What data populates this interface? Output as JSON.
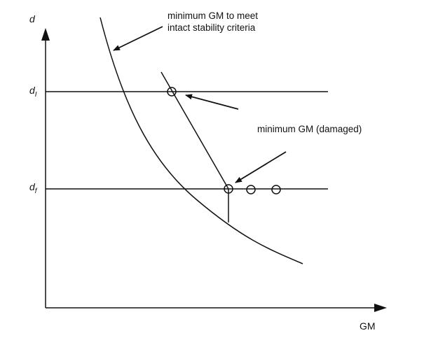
{
  "axes": {
    "y_label": "d",
    "x_label": "GM"
  },
  "levels": {
    "upper": {
      "symbol": "d",
      "subscript": "I"
    },
    "lower": {
      "symbol": "d",
      "subscript": "f"
    }
  },
  "annotations": {
    "intact_line1": "minimum GM to meet",
    "intact_line2": "intact stability criteria",
    "damaged": "minimum GM (damaged)"
  },
  "colors": {
    "ink": "#111111",
    "background": "#ffffff"
  }
}
